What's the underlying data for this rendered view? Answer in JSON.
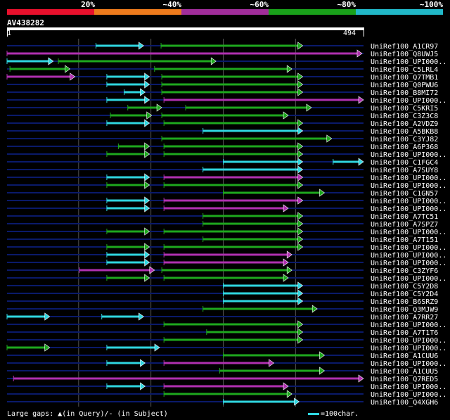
{
  "legend": {
    "labels": [
      "20%",
      "~40%",
      "~60%",
      "~80%",
      "~100%"
    ],
    "segments": [
      {
        "color": "#e8102c",
        "share": 0.2
      },
      {
        "color": "#ec7a1c",
        "share": 0.2
      },
      {
        "color": "#a02d9a",
        "share": 0.2
      },
      {
        "color": "#19a01a",
        "share": 0.2
      },
      {
        "color": "#21b8c8",
        "share": 0.2
      }
    ]
  },
  "query": {
    "name": "AV438282",
    "start": "1",
    "end": "494",
    "length": 494
  },
  "colors": {
    "cyan": "#2fd6e0",
    "green": "#1ea81e",
    "magenta": "#b030b0",
    "line": "#0a1a6a",
    "grid": "#555555"
  },
  "hits": [
    {
      "label": "UniRef100_A1CR97",
      "segments": [
        {
          "c": "cyan",
          "s": 124,
          "e": 190,
          "arrow": true
        },
        {
          "c": "green",
          "s": 214,
          "e": 410,
          "arrow": true
        }
      ]
    },
    {
      "label": "UniRef100_Q8UWJ5",
      "segments": [
        {
          "c": "magenta",
          "s": 1,
          "e": 492,
          "arrow": true
        }
      ]
    },
    {
      "label": "UniRef100_UPI000..",
      "segments": [
        {
          "c": "cyan",
          "s": 1,
          "e": 65,
          "arrow": true
        },
        {
          "c": "green",
          "s": 72,
          "e": 290,
          "arrow": true
        }
      ]
    },
    {
      "label": "UniRef100_C5LRL4",
      "segments": [
        {
          "c": "green",
          "s": 5,
          "e": 88,
          "arrow": true
        },
        {
          "c": "green",
          "s": 205,
          "e": 395,
          "arrow": true
        }
      ]
    },
    {
      "label": "UniRef100_Q7TMB1",
      "segments": [
        {
          "c": "magenta",
          "s": 1,
          "e": 95,
          "arrow": true
        },
        {
          "c": "cyan",
          "s": 139,
          "e": 198,
          "arrow": true
        },
        {
          "c": "green",
          "s": 215,
          "e": 410,
          "arrow": true
        }
      ]
    },
    {
      "label": "UniRef100_Q0PWU6",
      "segments": [
        {
          "c": "cyan",
          "s": 139,
          "e": 198,
          "arrow": true
        },
        {
          "c": "green",
          "s": 215,
          "e": 410,
          "arrow": true
        }
      ]
    },
    {
      "label": "UniRef100_B8MI72",
      "segments": [
        {
          "c": "cyan",
          "s": 163,
          "e": 192,
          "arrow": true
        },
        {
          "c": "green",
          "s": 215,
          "e": 410,
          "arrow": true
        }
      ]
    },
    {
      "label": "UniRef100_UPI000..",
      "segments": [
        {
          "c": "cyan",
          "s": 139,
          "e": 198,
          "arrow": true
        },
        {
          "c": "magenta",
          "s": 218,
          "e": 494,
          "arrow": true
        }
      ]
    },
    {
      "label": "UniRef100_C5KRI5",
      "segments": [
        {
          "c": "green",
          "s": 168,
          "e": 215,
          "arrow": true
        },
        {
          "c": "green",
          "s": 248,
          "e": 422,
          "arrow": true
        }
      ]
    },
    {
      "label": "UniRef100_C3Z3C8",
      "segments": [
        {
          "c": "green",
          "s": 144,
          "e": 201,
          "arrow": true
        },
        {
          "c": "green",
          "s": 215,
          "e": 390,
          "arrow": true
        }
      ]
    },
    {
      "label": "UniRef100_A2VDZ9",
      "segments": [
        {
          "c": "cyan",
          "s": 139,
          "e": 198,
          "arrow": true
        },
        {
          "c": "green",
          "s": 218,
          "e": 410,
          "arrow": true
        }
      ]
    },
    {
      "label": "UniRef100_A5BKB8",
      "segments": [
        {
          "c": "cyan",
          "s": 272,
          "e": 410,
          "arrow": true
        }
      ]
    },
    {
      "label": "UniRef100_C3YJ82",
      "segments": [
        {
          "c": "green",
          "s": 215,
          "e": 450,
          "arrow": true
        }
      ]
    },
    {
      "label": "UniRef100_A6P368",
      "segments": [
        {
          "c": "green",
          "s": 155,
          "e": 198,
          "arrow": true
        },
        {
          "c": "green",
          "s": 218,
          "e": 410,
          "arrow": true
        }
      ]
    },
    {
      "label": "UniRef100_UPI000..",
      "segments": [
        {
          "c": "green",
          "s": 139,
          "e": 198,
          "arrow": true
        },
        {
          "c": "green",
          "s": 218,
          "e": 410,
          "arrow": true
        }
      ]
    },
    {
      "label": "UniRef100_C1FGC4",
      "segments": [
        {
          "c": "cyan",
          "s": 300,
          "e": 410,
          "arrow": true
        },
        {
          "c": "cyan",
          "s": 452,
          "e": 494,
          "arrow": true
        }
      ]
    },
    {
      "label": "UniRef100_A7SUY8",
      "segments": [
        {
          "c": "cyan",
          "s": 272,
          "e": 410,
          "arrow": true
        }
      ]
    },
    {
      "label": "UniRef100_UPI000..",
      "segments": [
        {
          "c": "cyan",
          "s": 139,
          "e": 198,
          "arrow": true
        },
        {
          "c": "magenta",
          "s": 218,
          "e": 410,
          "arrow": true
        }
      ]
    },
    {
      "label": "UniRef100_UPI000..",
      "segments": [
        {
          "c": "green",
          "s": 139,
          "e": 198,
          "arrow": true
        },
        {
          "c": "green",
          "s": 218,
          "e": 410,
          "arrow": true
        }
      ]
    },
    {
      "label": "UniRef100_C1GN57",
      "segments": [
        {
          "c": "green",
          "s": 300,
          "e": 440,
          "arrow": true
        }
      ]
    },
    {
      "label": "UniRef100_UPI000..",
      "segments": [
        {
          "c": "cyan",
          "s": 139,
          "e": 198,
          "arrow": true
        },
        {
          "c": "magenta",
          "s": 218,
          "e": 410,
          "arrow": true
        }
      ]
    },
    {
      "label": "UniRef100_UPI000..",
      "segments": [
        {
          "c": "cyan",
          "s": 139,
          "e": 198,
          "arrow": true
        },
        {
          "c": "magenta",
          "s": 218,
          "e": 390,
          "arrow": true
        }
      ]
    },
    {
      "label": "UniRef100_A7TC51",
      "segments": [
        {
          "c": "green",
          "s": 272,
          "e": 410,
          "arrow": true
        }
      ]
    },
    {
      "label": "UniRef100_A7SPZ7",
      "segments": [
        {
          "c": "green",
          "s": 272,
          "e": 410,
          "arrow": true
        }
      ]
    },
    {
      "label": "UniRef100_UPI000..",
      "segments": [
        {
          "c": "green",
          "s": 139,
          "e": 198,
          "arrow": true
        },
        {
          "c": "green",
          "s": 218,
          "e": 410,
          "arrow": true
        }
      ]
    },
    {
      "label": "UniRef100_A7T151",
      "segments": [
        {
          "c": "green",
          "s": 272,
          "e": 410,
          "arrow": true
        }
      ]
    },
    {
      "label": "UniRef100_UPI000..",
      "segments": [
        {
          "c": "green",
          "s": 139,
          "e": 198,
          "arrow": true
        },
        {
          "c": "green",
          "s": 218,
          "e": 410,
          "arrow": true
        }
      ]
    },
    {
      "label": "UniRef100_UPI000..",
      "segments": [
        {
          "c": "cyan",
          "s": 139,
          "e": 198,
          "arrow": true
        },
        {
          "c": "magenta",
          "s": 218,
          "e": 395,
          "arrow": true
        }
      ]
    },
    {
      "label": "UniRef100_UPI000..",
      "segments": [
        {
          "c": "cyan",
          "s": 139,
          "e": 198,
          "arrow": true
        },
        {
          "c": "magenta",
          "s": 218,
          "e": 390,
          "arrow": true
        }
      ]
    },
    {
      "label": "UniRef100_C3ZYF6",
      "segments": [
        {
          "c": "magenta",
          "s": 101,
          "e": 205,
          "arrow": true
        },
        {
          "c": "green",
          "s": 215,
          "e": 395,
          "arrow": true
        }
      ]
    },
    {
      "label": "UniRef100_UPI000..",
      "segments": [
        {
          "c": "green",
          "s": 139,
          "e": 198,
          "arrow": true
        },
        {
          "c": "green",
          "s": 218,
          "e": 390,
          "arrow": true
        }
      ]
    },
    {
      "label": "UniRef100_C5Y2D8",
      "segments": [
        {
          "c": "cyan",
          "s": 300,
          "e": 410,
          "arrow": true
        }
      ]
    },
    {
      "label": "UniRef100_C5Y2D4",
      "segments": [
        {
          "c": "cyan",
          "s": 300,
          "e": 410,
          "arrow": true
        }
      ]
    },
    {
      "label": "UniRef100_B6SRZ9",
      "segments": [
        {
          "c": "cyan",
          "s": 300,
          "e": 410,
          "arrow": true
        }
      ]
    },
    {
      "label": "UniRef100_Q3MJW9",
      "segments": [
        {
          "c": "green",
          "s": 272,
          "e": 430,
          "arrow": true
        }
      ]
    },
    {
      "label": "UniRef100_A7RR27",
      "segments": [
        {
          "c": "cyan",
          "s": 1,
          "e": 60,
          "arrow": true
        },
        {
          "c": "cyan",
          "s": 132,
          "e": 190,
          "arrow": true
        }
      ]
    },
    {
      "label": "UniRef100_UPI000..",
      "segments": [
        {
          "c": "green",
          "s": 218,
          "e": 410,
          "arrow": true
        }
      ]
    },
    {
      "label": "UniRef100_A7T1T6",
      "segments": [
        {
          "c": "green",
          "s": 277,
          "e": 410,
          "arrow": true
        }
      ]
    },
    {
      "label": "UniRef100_UPI000..",
      "segments": [
        {
          "c": "green",
          "s": 218,
          "e": 410,
          "arrow": true
        }
      ]
    },
    {
      "label": "UniRef100_UPI000..",
      "segments": [
        {
          "c": "green",
          "s": 1,
          "e": 60,
          "arrow": true
        },
        {
          "c": "cyan",
          "s": 139,
          "e": 212,
          "arrow": true
        }
      ]
    },
    {
      "label": "UniRef100_A1CUU6",
      "segments": [
        {
          "c": "green",
          "s": 300,
          "e": 440,
          "arrow": true
        }
      ]
    },
    {
      "label": "UniRef100_UPI000..",
      "segments": [
        {
          "c": "cyan",
          "s": 139,
          "e": 192,
          "arrow": true
        },
        {
          "c": "magenta",
          "s": 218,
          "e": 370,
          "arrow": true
        }
      ]
    },
    {
      "label": "UniRef100_A1CUU5",
      "segments": [
        {
          "c": "green",
          "s": 295,
          "e": 440,
          "arrow": true
        }
      ]
    },
    {
      "label": "UniRef100_Q7RED5",
      "segments": [
        {
          "c": "magenta",
          "s": 10,
          "e": 494,
          "arrow": true
        }
      ]
    },
    {
      "label": "UniRef100_UPI000..",
      "segments": [
        {
          "c": "cyan",
          "s": 139,
          "e": 192,
          "arrow": true
        },
        {
          "c": "magenta",
          "s": 218,
          "e": 390,
          "arrow": true
        }
      ]
    },
    {
      "label": "UniRef100_UPI000..",
      "segments": [
        {
          "c": "green",
          "s": 218,
          "e": 395,
          "arrow": true
        }
      ]
    },
    {
      "label": "UniRef100_Q4XGH6",
      "segments": [
        {
          "c": "cyan",
          "s": 300,
          "e": 405,
          "arrow": true
        }
      ]
    }
  ],
  "footer": {
    "gaps_text": "Large gaps: ▲(in Query)/- (in Subject)",
    "scale_text": "=100char."
  }
}
